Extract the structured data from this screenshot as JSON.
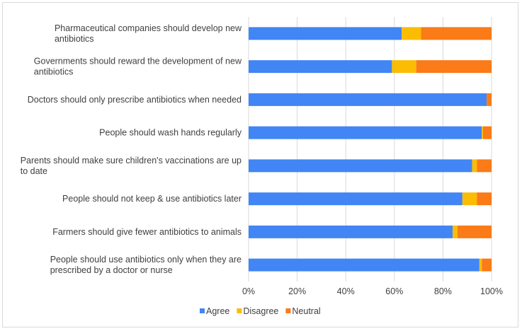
{
  "chart_data": {
    "type": "bar",
    "orientation": "horizontal",
    "stacked": true,
    "categories": [
      [
        "Pharmaceutical companies should develop new",
        "antibiotics"
      ],
      [
        "Governments should reward the development of new",
        "antibiotics"
      ],
      [
        "Doctors should only prescribe antibiotics when needed"
      ],
      [
        "People should wash hands regularly"
      ],
      [
        "Parents should make sure children's vaccinations are up",
        "to date"
      ],
      [
        "People should not keep & use antibiotics later"
      ],
      [
        "Farmers should give fewer antibiotics to animals"
      ],
      [
        "People should use antibiotics only when they are",
        "prescribed by a doctor or nurse"
      ]
    ],
    "series": [
      {
        "name": "Agree",
        "color": "#4285f4",
        "values": [
          63,
          59,
          98,
          96,
          92,
          88,
          84,
          95
        ]
      },
      {
        "name": "Disagree",
        "color": "#fbbc04",
        "values": [
          8,
          10,
          0,
          0.5,
          2,
          6,
          2,
          1
        ]
      },
      {
        "name": "Neutral",
        "color": "#fa7b17",
        "values": [
          29,
          31,
          2,
          3.5,
          6,
          6,
          14,
          4
        ]
      }
    ],
    "xlim": [
      0,
      100
    ],
    "xticks": [
      "0%",
      "20%",
      "40%",
      "60%",
      "80%",
      "100%"
    ],
    "title": "",
    "xlabel": "",
    "ylabel": "",
    "grid": true,
    "legend": "bottom"
  }
}
